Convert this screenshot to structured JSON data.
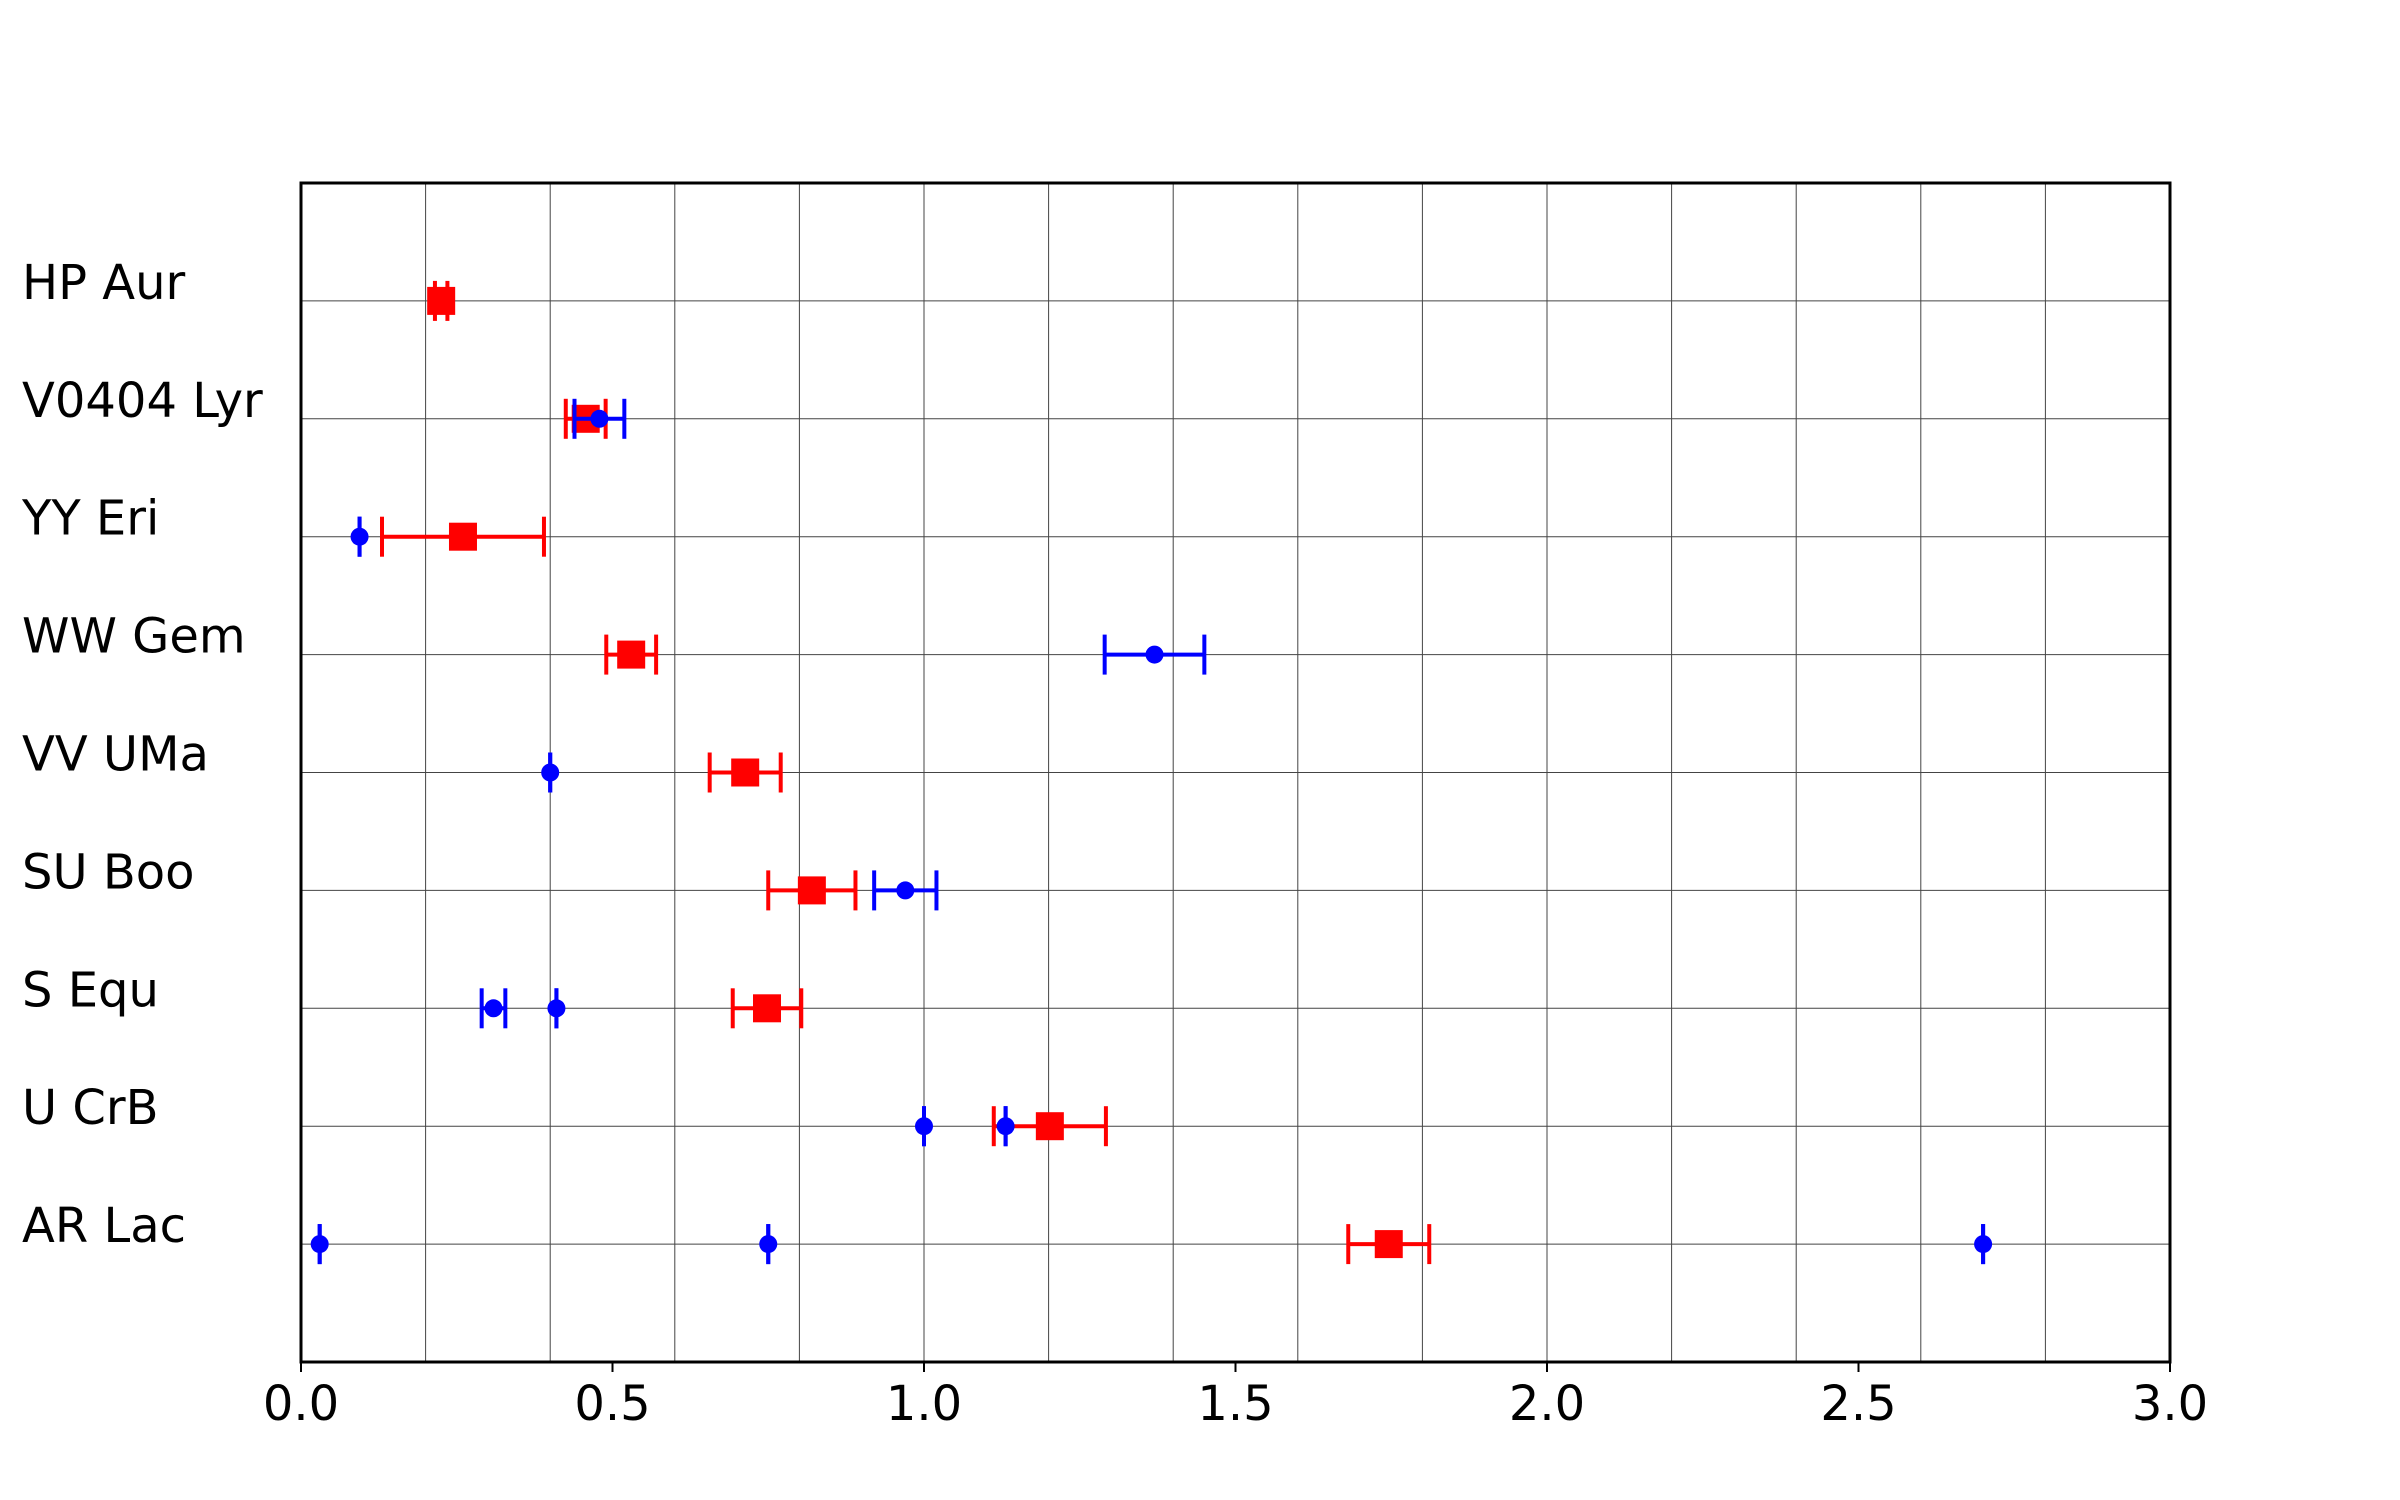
{
  "chart_data": {
    "type": "errorbar",
    "categories": [
      "HP Aur",
      "V0404 Lyr",
      "YY Eri",
      "WW Gem",
      "VV UMa",
      "SU Boo",
      "S Equ",
      "U CrB",
      "AR Lac"
    ],
    "xlim": [
      0,
      3
    ],
    "xticks": [
      {
        "value": 0,
        "label": "0.0"
      },
      0.5,
      {
        "value": 1,
        "label": "1.0"
      },
      1.5,
      {
        "value": 2,
        "label": "2.0"
      },
      2.5,
      {
        "value": 3,
        "label": "3.0"
      }
    ],
    "xgrid": [
      0.2,
      0.4,
      0.6,
      0.8,
      1.0,
      1.2,
      1.4,
      1.6,
      1.8,
      2.0,
      2.2,
      2.4,
      2.6,
      2.8
    ],
    "grid": true,
    "series": [
      {
        "color": "#ff0000",
        "marker": "square",
        "y": [
          "HP Aur",
          "V0404 Lyr",
          "YY Eri",
          "WW Gem",
          "VV UMa",
          "SU Boo",
          "S Equ",
          "U CrB",
          "AR Lac"
        ],
        "x": [
          0.225,
          0.457,
          0.26,
          0.53,
          0.713,
          0.82,
          0.748,
          1.202,
          1.746
        ],
        "xerr": [
          0.01,
          0.032,
          0.13,
          0.04,
          0.057,
          0.07,
          0.055,
          0.09,
          0.065
        ]
      },
      {
        "color": "#0000ff",
        "marker": "circle",
        "y": [
          "V0404 Lyr",
          "YY Eri",
          "WW Gem",
          "VV UMa",
          "SU Boo",
          "S Equ",
          "S Equ",
          "U CrB",
          "U CrB",
          "AR Lac",
          "AR Lac",
          "AR Lac"
        ],
        "x": [
          0.479,
          0.094,
          1.37,
          0.4,
          0.97,
          0.309,
          0.41,
          1.0,
          1.131,
          0.03,
          0.75,
          2.7
        ],
        "xerr": [
          0.04,
          0,
          0.08,
          0,
          0.05,
          0.019,
          0,
          0,
          0,
          0,
          0,
          0
        ]
      }
    ]
  }
}
